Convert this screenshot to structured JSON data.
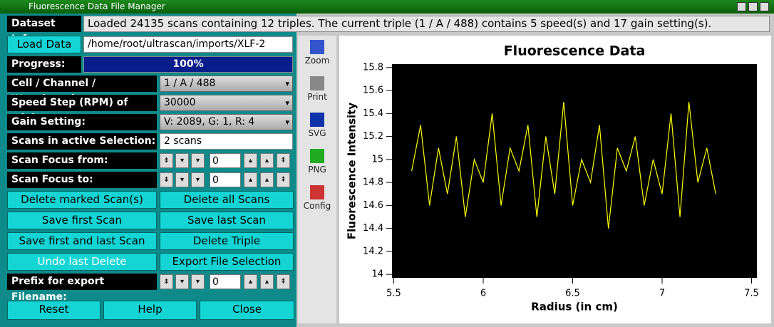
{
  "window_title": "Fluorescence Data File Manager",
  "dataset_info": {
    "label": "Dataset Info:",
    "text": "Loaded 24135 scans containing 12 triples. The current triple (1 / A / 488) contains 5 speed(s) and 17 gain setting(s)."
  },
  "load": {
    "button": "Load Data",
    "path": "/home/root/ultrascan/imports/XLF-2"
  },
  "progress": {
    "label": "Progress:",
    "text": "100%"
  },
  "settings": [
    {
      "label": "Cell / Channel / Wavelength:",
      "value": "1 / A / 488"
    },
    {
      "label": "Speed Step (RPM) of triple:",
      "value": "30000"
    },
    {
      "label": "Gain Setting:",
      "value": "V: 2089, G: 1, R: 4"
    },
    {
      "label": "Scans in active Selection:",
      "value": "2 scans"
    }
  ],
  "focus": [
    {
      "label": "Scan Focus from:",
      "value": "0"
    },
    {
      "label": "Scan Focus to:",
      "value": "0"
    }
  ],
  "buttons": [
    [
      "Delete marked Scan(s)",
      "Delete all Scans"
    ],
    [
      "Save first Scan",
      "Save last Scan"
    ],
    [
      "Save first and last Scan",
      "Delete Triple"
    ],
    [
      "Undo last Delete",
      "Export File Selection"
    ]
  ],
  "prefix": {
    "label": "Prefix for export Filename:",
    "value": "0"
  },
  "bottom_buttons": [
    "Reset",
    "Help",
    "Close"
  ],
  "toolbar": [
    "Zoom",
    "Print",
    "SVG",
    "PNG",
    "Config"
  ],
  "chart_data": {
    "type": "line",
    "title": "Fluorescence Data",
    "xlabel": "Radius (in cm)",
    "ylabel": "Fluorescence Intensity",
    "color": "#ffff00",
    "background": "#000000",
    "xlim": [
      5.49,
      7.53
    ],
    "ylim": [
      13.97,
      15.83
    ],
    "xticks": [
      5.5,
      6,
      6.5,
      7,
      7.5
    ],
    "yticks": [
      14,
      14.2,
      14.4,
      14.6,
      14.8,
      15,
      15.2,
      15.4,
      15.6,
      15.8
    ],
    "x": [
      5.6,
      5.65,
      5.7,
      5.75,
      5.8,
      5.85,
      5.9,
      5.95,
      6,
      6.05,
      6.1,
      6.15,
      6.2,
      6.25,
      6.3,
      6.35,
      6.4,
      6.45,
      6.5,
      6.55,
      6.6,
      6.65,
      6.7,
      6.75,
      6.8,
      6.85,
      6.9,
      6.95,
      7,
      7.05,
      7.1,
      7.15,
      7.2,
      7.25,
      7.3
    ],
    "values": [
      14.9,
      15.3,
      14.6,
      15.1,
      14.7,
      15.2,
      14.5,
      15.0,
      14.8,
      15.4,
      14.6,
      15.1,
      14.9,
      15.3,
      14.5,
      15.2,
      14.7,
      15.5,
      14.6,
      15.0,
      14.8,
      15.3,
      14.4,
      15.1,
      14.9,
      15.2,
      14.6,
      15.0,
      14.7,
      15.4,
      14.5,
      15.5,
      14.8,
      15.1,
      14.7
    ]
  }
}
